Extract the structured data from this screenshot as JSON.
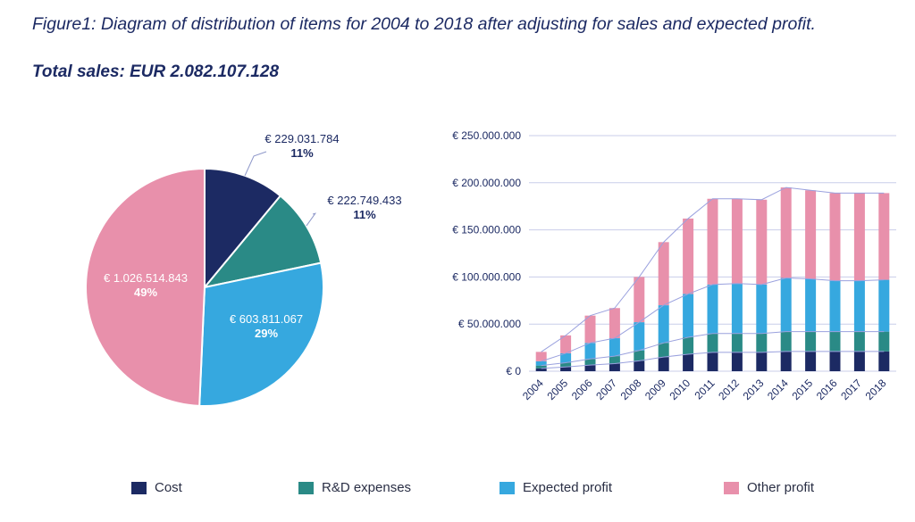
{
  "figure_title": "Figure1: Diagram of distribution of items for 2004 to 2018 after adjusting for sales and expected profit.",
  "total_sales": "Total sales: EUR 2.082.107.128",
  "colors": {
    "cost": "#1c2a63",
    "rnd": "#2a8a86",
    "expected": "#36a8df",
    "other": "#e890ab",
    "text": "#1c2a63",
    "grid": "#c9cdea",
    "trend": "#9aa1de"
  },
  "chart_data": [
    {
      "type": "pie",
      "slices": [
        {
          "category": "Cost",
          "value": 229031784,
          "value_label": "€ 229.031.784",
          "percent_label": "11%"
        },
        {
          "category": "R&D expenses",
          "value": 222749433,
          "value_label": "€ 222.749.433",
          "percent_label": "11%"
        },
        {
          "category": "Expected profit",
          "value": 603811067,
          "value_label": "€ 603.811.067",
          "percent_label": "29%"
        },
        {
          "category": "Other profit",
          "value": 1026514843,
          "value_label": "€ 1.026.514.843",
          "percent_label": "49%"
        }
      ]
    },
    {
      "type": "bar",
      "stacked": true,
      "categories": [
        "2004",
        "2005",
        "2006",
        "2007",
        "2008",
        "2009",
        "2010",
        "2011",
        "2012",
        "2013",
        "2014",
        "2015",
        "2016",
        "2017",
        "2018"
      ],
      "series": [
        {
          "name": "Cost",
          "values": [
            3000000,
            4500000,
            6500000,
            8000000,
            11000000,
            15000000,
            18000000,
            20000000,
            20000000,
            20000000,
            21000000,
            21000000,
            21000000,
            21000000,
            21000000
          ]
        },
        {
          "name": "R&D expenses",
          "values": [
            3000000,
            4500000,
            6500000,
            8000000,
            11000000,
            15000000,
            18000000,
            20000000,
            20000000,
            20000000,
            21000000,
            21000000,
            21000000,
            21000000,
            21000000
          ]
        },
        {
          "name": "Expected profit",
          "values": [
            4500000,
            10000000,
            17000000,
            19000000,
            30000000,
            40000000,
            46000000,
            52000000,
            53000000,
            52000000,
            57000000,
            56000000,
            54000000,
            54000000,
            55000000
          ]
        },
        {
          "name": "Other profit",
          "values": [
            10000000,
            19000000,
            29000000,
            32000000,
            48000000,
            67000000,
            80000000,
            91000000,
            90000000,
            90000000,
            96000000,
            94000000,
            93000000,
            93000000,
            92000000
          ]
        }
      ],
      "y_ticks": [
        "€ 250.000.000",
        "€ 200.000.000",
        "€ 150.000.000",
        "€ 100.000.000",
        "€ 50.000.000",
        "€ 0"
      ],
      "ylim": [
        0,
        250000000
      ],
      "grid": true,
      "trend_lines": true
    }
  ],
  "legend": [
    {
      "label": "Cost",
      "color": "#1c2a63"
    },
    {
      "label": "R&D expenses",
      "color": "#2a8a86"
    },
    {
      "label": "Expected profit",
      "color": "#36a8df"
    },
    {
      "label": "Other profit",
      "color": "#e890ab"
    }
  ]
}
